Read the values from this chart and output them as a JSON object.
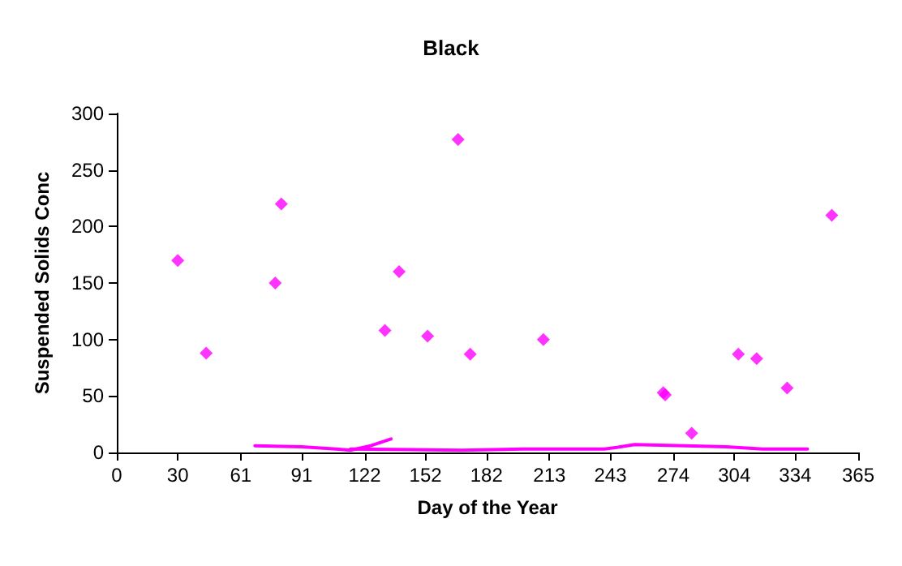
{
  "chart_data": {
    "type": "scatter",
    "title": "Black",
    "xlabel": "Day of the Year",
    "ylabel": "Suspended Solids Conc",
    "marker": "diamond",
    "xlim": [
      0,
      365
    ],
    "xticks": [
      0,
      30,
      61,
      91,
      122,
      152,
      182,
      213,
      243,
      274,
      304,
      334,
      365
    ],
    "ylim": [
      0,
      300
    ],
    "yticks": [
      0,
      50,
      100,
      150,
      200,
      250,
      300
    ],
    "series": [
      {
        "color": "#ff00ff",
        "x": [
          30,
          44,
          78,
          81,
          132,
          139,
          153,
          168,
          174,
          210,
          269,
          270,
          283,
          306,
          315,
          330,
          352
        ],
        "values": [
          170,
          88,
          150,
          220,
          108,
          160,
          103,
          277,
          87,
          100,
          53,
          51,
          17,
          87,
          83,
          57,
          210
        ]
      },
      {
        "type": "line",
        "marker": "none",
        "color": "#ff00ff",
        "x": [
          68,
          91,
          108,
          115,
          125,
          135
        ],
        "values": [
          6,
          5,
          3,
          2,
          6,
          12
        ]
      },
      {
        "type": "line",
        "marker": "none",
        "color": "#ff00ff",
        "x": [
          115,
          170,
          200,
          240,
          248,
          255,
          280,
          300,
          318,
          340
        ],
        "values": [
          3,
          2,
          3,
          3,
          5,
          7,
          6,
          5,
          3,
          3
        ]
      }
    ]
  }
}
